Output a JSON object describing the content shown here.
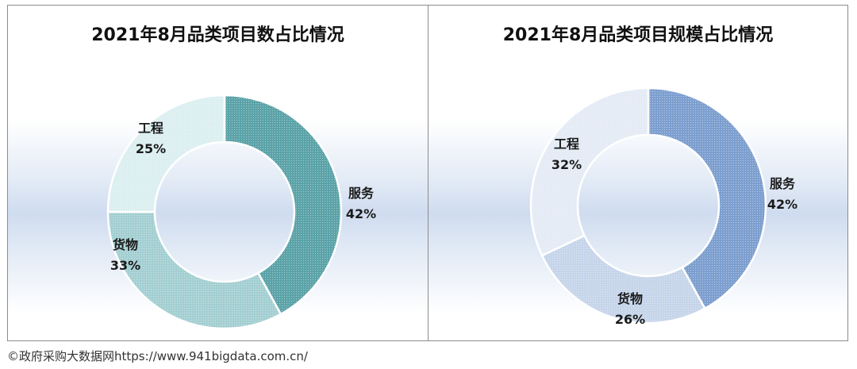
{
  "chart_data": [
    {
      "type": "pie",
      "donut": true,
      "title": "2021年8月品类项目数占比情况",
      "categories": [
        "服务",
        "货物",
        "工程"
      ],
      "values": [
        42,
        33,
        25
      ],
      "labels": [
        "42%",
        "33%",
        "25%"
      ],
      "colors": [
        "#5ba3a8",
        "#a4cfd2",
        "#dceff0"
      ]
    },
    {
      "type": "pie",
      "donut": true,
      "title": "2021年8月品类项目规模占比情况",
      "categories": [
        "服务",
        "货物",
        "工程"
      ],
      "values": [
        42,
        26,
        32
      ],
      "labels": [
        "42%",
        "26%",
        "32%"
      ],
      "colors": [
        "#7d9fcf",
        "#c6d5ea",
        "#e4ebf5"
      ]
    }
  ],
  "credit": "©政府采购大数据网https://www.941bigdata.com.cn/"
}
